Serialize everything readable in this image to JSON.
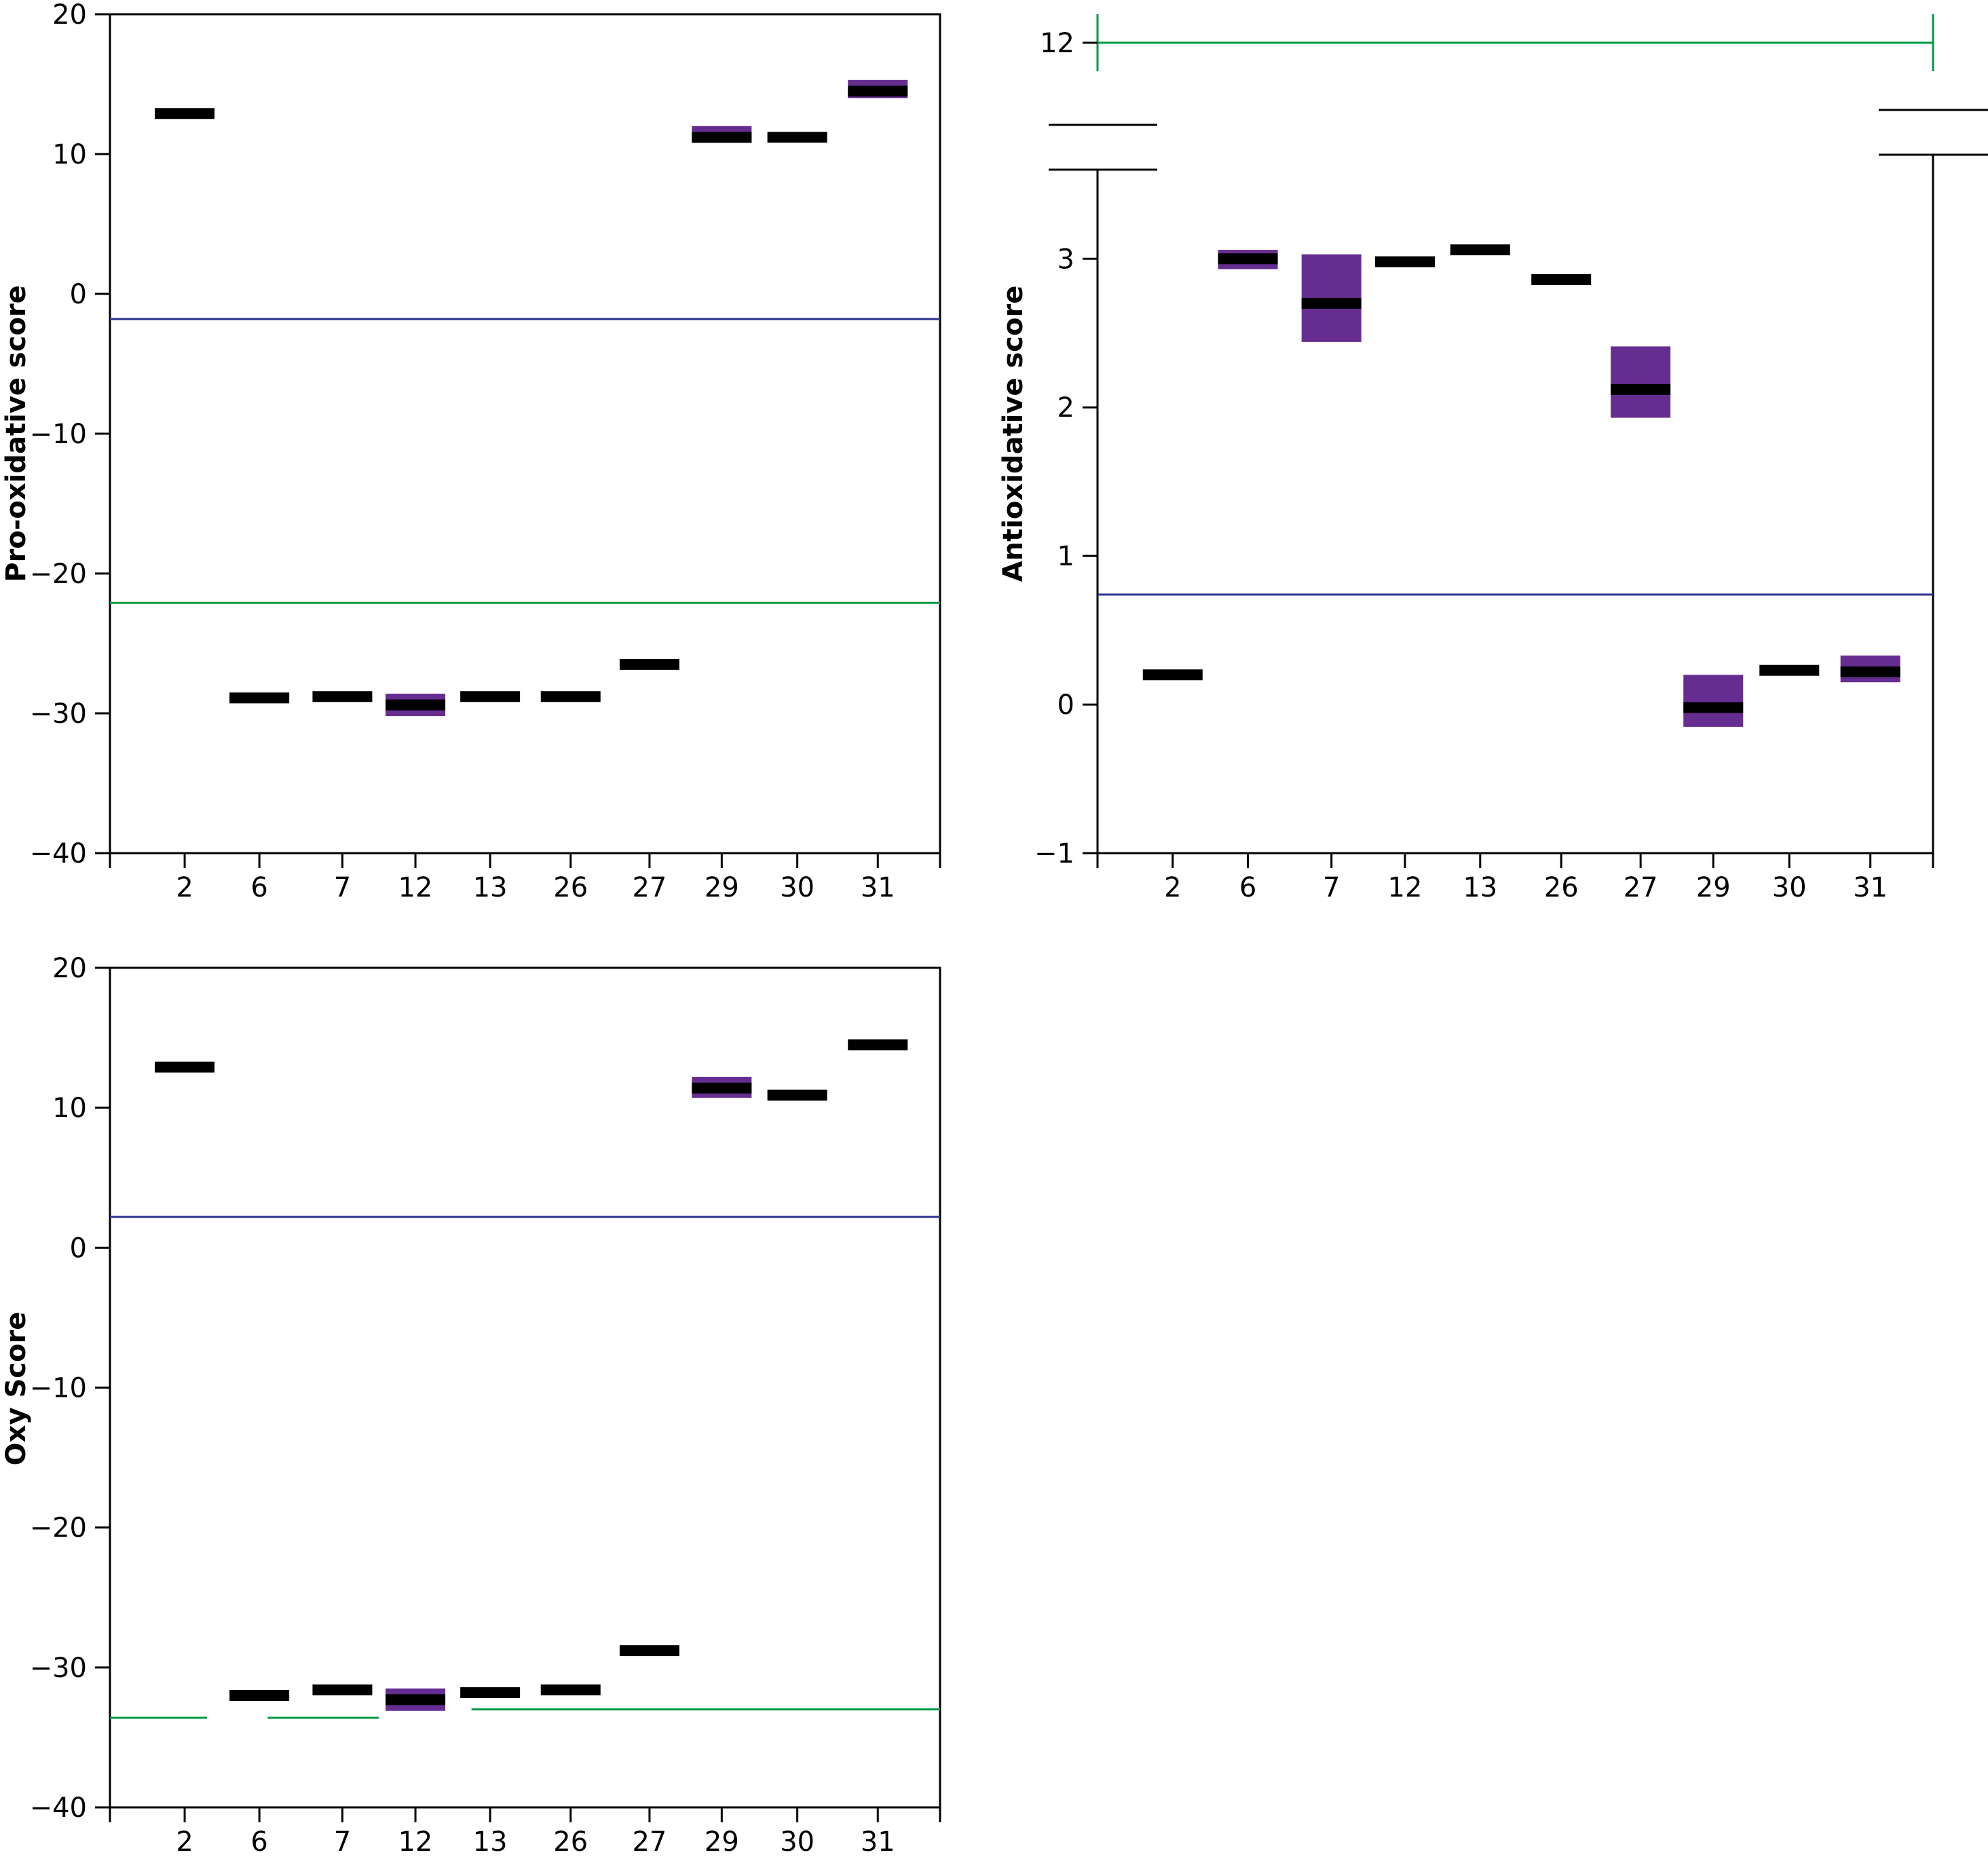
{
  "colors": {
    "axis": "#000000",
    "median": "#000000",
    "iqr_box": "#662d91",
    "upper_threshold": "#2e3192",
    "lower_threshold": "#009a44"
  },
  "chart_data": [
    {
      "type": "box",
      "ylabel": "Pro-oxidative score",
      "ylim": [
        -40,
        20
      ],
      "yticks": [
        "20",
        "10",
        "0",
        "−10",
        "−20",
        "−30",
        "−40"
      ],
      "categories": [
        "2",
        "6",
        "7",
        "12",
        "13",
        "26",
        "27",
        "29",
        "30",
        "31"
      ],
      "medians": [
        12.9,
        -28.9,
        -28.8,
        -29.4,
        -28.8,
        -28.8,
        -26.5,
        11.2,
        11.2,
        14.5
      ],
      "box_ranges": [
        null,
        null,
        null,
        [
          -30.2,
          -28.6
        ],
        null,
        null,
        null,
        [
          10.8,
          12.0
        ],
        null,
        [
          14.0,
          15.3
        ]
      ],
      "reference_lines": [
        {
          "kind": "upper",
          "y": -1.8,
          "x_from": null,
          "x_to": null
        },
        {
          "kind": "lower",
          "y": -22.1,
          "x_from": null,
          "x_to": null
        }
      ]
    },
    {
      "type": "box",
      "ylabel": "Antioxidative score",
      "ylim": [
        -1,
        3.7
      ],
      "yticks": [
        "3",
        "2",
        "1",
        "0",
        "−1"
      ],
      "axis_break_label": "12",
      "categories": [
        "2",
        "6",
        "7",
        "12",
        "13",
        "26",
        "27",
        "29",
        "30",
        "31"
      ],
      "medians": [
        0.2,
        3.0,
        2.7,
        2.98,
        3.06,
        2.86,
        2.12,
        -0.02,
        0.23,
        0.22
      ],
      "box_ranges": [
        null,
        [
          2.93,
          3.06
        ],
        [
          2.44,
          3.03
        ],
        null,
        null,
        null,
        [
          1.93,
          2.41
        ],
        [
          -0.15,
          0.2
        ],
        null,
        [
          0.15,
          0.33
        ]
      ],
      "reference_lines": [
        {
          "kind": "upper",
          "y": 0.74,
          "x_from": null,
          "x_to": null
        }
      ]
    },
    {
      "type": "box",
      "ylabel": "Oxy Score",
      "ylim": [
        -40,
        20
      ],
      "yticks": [
        "20",
        "10",
        "0",
        "−10",
        "−20",
        "−30",
        "−40"
      ],
      "categories": [
        "2",
        "6",
        "7",
        "12",
        "13",
        "26",
        "27",
        "29",
        "30",
        "31"
      ],
      "medians": [
        12.9,
        -32.0,
        -31.6,
        -32.3,
        -31.8,
        -31.6,
        -28.8,
        11.4,
        10.9,
        14.5
      ],
      "box_ranges": [
        null,
        null,
        null,
        [
          -33.1,
          -31.5
        ],
        null,
        null,
        null,
        [
          10.7,
          12.2
        ],
        null,
        null
      ],
      "reference_lines": [
        {
          "kind": "upper",
          "y": 2.2,
          "x_from": null,
          "x_to": null
        },
        {
          "kind": "lower",
          "y": -33.6,
          "x_from": 0,
          "x_to": 1.3
        },
        {
          "kind": "lower",
          "y": -33.6,
          "x_from": 2.1,
          "x_to": 3.5
        },
        {
          "kind": "lower",
          "y": -33.0,
          "x_from": 4.75,
          "x_to": 10.5
        }
      ]
    }
  ]
}
